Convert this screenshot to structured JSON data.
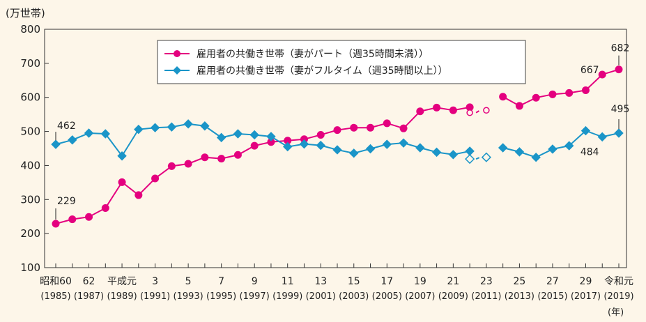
{
  "chart_data": {
    "type": "line",
    "y_unit_label": "(万世帯)",
    "x_unit_label": "(年)",
    "ylim": [
      100,
      800
    ],
    "yticks": [
      100,
      200,
      300,
      400,
      500,
      600,
      700,
      800
    ],
    "grid": false,
    "legend_position": "top-right",
    "x_years": [
      1985,
      1986,
      1987,
      1988,
      1989,
      1990,
      1991,
      1992,
      1993,
      1994,
      1995,
      1996,
      1997,
      1998,
      1999,
      2000,
      2001,
      2002,
      2003,
      2004,
      2005,
      2006,
      2007,
      2008,
      2009,
      2010,
      2011,
      2012,
      2013,
      2014,
      2015,
      2016,
      2017,
      2018,
      2019
    ],
    "x_tick_labels": [
      {
        "year": 1985,
        "top": "昭和60",
        "bottom": "(1985)"
      },
      {
        "year": 1987,
        "top": "62",
        "bottom": "(1987)"
      },
      {
        "year": 1989,
        "top": "平成元",
        "bottom": "(1989)"
      },
      {
        "year": 1991,
        "top": "3",
        "bottom": "(1991)"
      },
      {
        "year": 1993,
        "top": "5",
        "bottom": "(1993)"
      },
      {
        "year": 1995,
        "top": "7",
        "bottom": "(1995)"
      },
      {
        "year": 1997,
        "top": "9",
        "bottom": "(1997)"
      },
      {
        "year": 1999,
        "top": "11",
        "bottom": "(1999)"
      },
      {
        "year": 2001,
        "top": "13",
        "bottom": "(2001)"
      },
      {
        "year": 2003,
        "top": "15",
        "bottom": "(2003)"
      },
      {
        "year": 2005,
        "top": "17",
        "bottom": "(2005)"
      },
      {
        "year": 2007,
        "top": "19",
        "bottom": "(2007)"
      },
      {
        "year": 2009,
        "top": "21",
        "bottom": "(2009)"
      },
      {
        "year": 2011,
        "top": "23",
        "bottom": "(2011)"
      },
      {
        "year": 2013,
        "top": "25",
        "bottom": "(2013)"
      },
      {
        "year": 2015,
        "top": "27",
        "bottom": "(2015)"
      },
      {
        "year": 2017,
        "top": "29",
        "bottom": "(2017)"
      },
      {
        "year": 2019,
        "top": "令和元",
        "bottom": "(2019)"
      }
    ],
    "series": [
      {
        "name": "雇用者の共働き世帯（妻がパート（週35時間未満））",
        "color": "#e4007f",
        "marker": "circle",
        "segments": [
          {
            "x": [
              1985,
              1986,
              1987,
              1988,
              1989,
              1990,
              1991,
              1992,
              1993,
              1994,
              1995,
              1996,
              1997,
              1998,
              1999,
              2000,
              2001,
              2002,
              2003,
              2004,
              2005,
              2006,
              2007,
              2008,
              2009,
              2010
            ],
            "y": [
              229,
              242,
              249,
              275,
              351,
              313,
              362,
              398,
              405,
              424,
              420,
              431,
              458,
              469,
              473,
              477,
              490,
              504,
              511,
              511,
              524,
              509,
              559,
              570,
              562,
              571
            ],
            "dashed": false
          },
          {
            "x": [
              2010,
              2011
            ],
            "y": [
              555,
              562
            ],
            "dashed": true,
            "hollow": true
          },
          {
            "x": [
              2012,
              2013,
              2014,
              2015,
              2016,
              2017,
              2018,
              2019
            ],
            "y": [
              602,
              575,
              599,
              609,
              613,
              621,
              667,
              682
            ],
            "dashed": false
          }
        ],
        "labels": [
          {
            "x": 1985,
            "y": 229,
            "text": "229"
          },
          {
            "x": 2018,
            "y": 667,
            "text": "667"
          },
          {
            "x": 2019,
            "y": 682,
            "text": "682"
          }
        ]
      },
      {
        "name": "雇用者の共働き世帯（妻がフルタイム（週35時間以上））",
        "color": "#1a95c8",
        "marker": "diamond",
        "segments": [
          {
            "x": [
              1985,
              1986,
              1987,
              1988,
              1989,
              1990,
              1991,
              1992,
              1993,
              1994,
              1995,
              1996,
              1997,
              1998,
              1999,
              2000,
              2001,
              2002,
              2003,
              2004,
              2005,
              2006,
              2007,
              2008,
              2009,
              2010
            ],
            "y": [
              462,
              475,
              495,
              493,
              428,
              506,
              511,
              513,
              522,
              516,
              482,
              493,
              490,
              485,
              455,
              463,
              459,
              446,
              436,
              449,
              462,
              466,
              452,
              439,
              432,
              442
            ],
            "dashed": false
          },
          {
            "x": [
              2010,
              2011
            ],
            "y": [
              419,
              424
            ],
            "dashed": true,
            "hollow": true
          },
          {
            "x": [
              2012,
              2013,
              2014,
              2015,
              2016,
              2017,
              2018,
              2019
            ],
            "y": [
              452,
              440,
              424,
              448,
              458,
              502,
              484,
              495
            ],
            "dashed": false
          }
        ],
        "labels": [
          {
            "x": 1985,
            "y": 462,
            "text": "462"
          },
          {
            "x": 2018,
            "y": 484,
            "text": "484"
          },
          {
            "x": 2019,
            "y": 495,
            "text": "495"
          }
        ]
      }
    ]
  }
}
